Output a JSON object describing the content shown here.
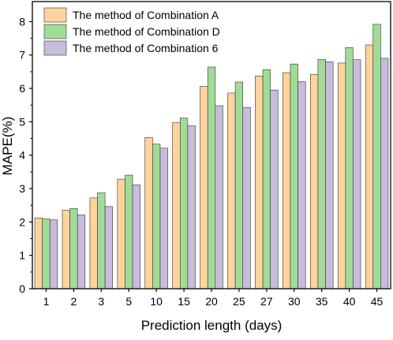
{
  "chart_data": {
    "type": "bar",
    "title": "",
    "xlabel": "Prediction length (days)",
    "ylabel": "MAPE(%)",
    "ylim": [
      0,
      8.6
    ],
    "yticks": [
      0,
      1,
      2,
      3,
      4,
      5,
      6,
      7,
      8
    ],
    "categories": [
      "1",
      "2",
      "3",
      "5",
      "10",
      "15",
      "20",
      "25",
      "27",
      "30",
      "35",
      "40",
      "45"
    ],
    "series": [
      {
        "name": "The method of Combination A",
        "color": "#ffd39b",
        "values": [
          2.12,
          2.35,
          2.72,
          3.28,
          4.53,
          4.97,
          6.06,
          5.86,
          6.37,
          6.47,
          6.42,
          6.76,
          7.3
        ]
      },
      {
        "name": "The method of Combination D",
        "color": "#a0dc98",
        "values": [
          2.09,
          2.4,
          2.87,
          3.4,
          4.33,
          5.11,
          6.64,
          6.19,
          6.56,
          6.73,
          6.87,
          7.22,
          7.92
        ]
      },
      {
        "name": "The method of Combination 6",
        "color": "#c8bcdc",
        "values": [
          2.06,
          2.21,
          2.46,
          3.11,
          4.21,
          4.88,
          5.48,
          5.43,
          5.95,
          6.2,
          6.8,
          6.86,
          6.9
        ]
      }
    ],
    "legend_position": "top-left",
    "grid": false,
    "stroke_color": "#333333"
  }
}
